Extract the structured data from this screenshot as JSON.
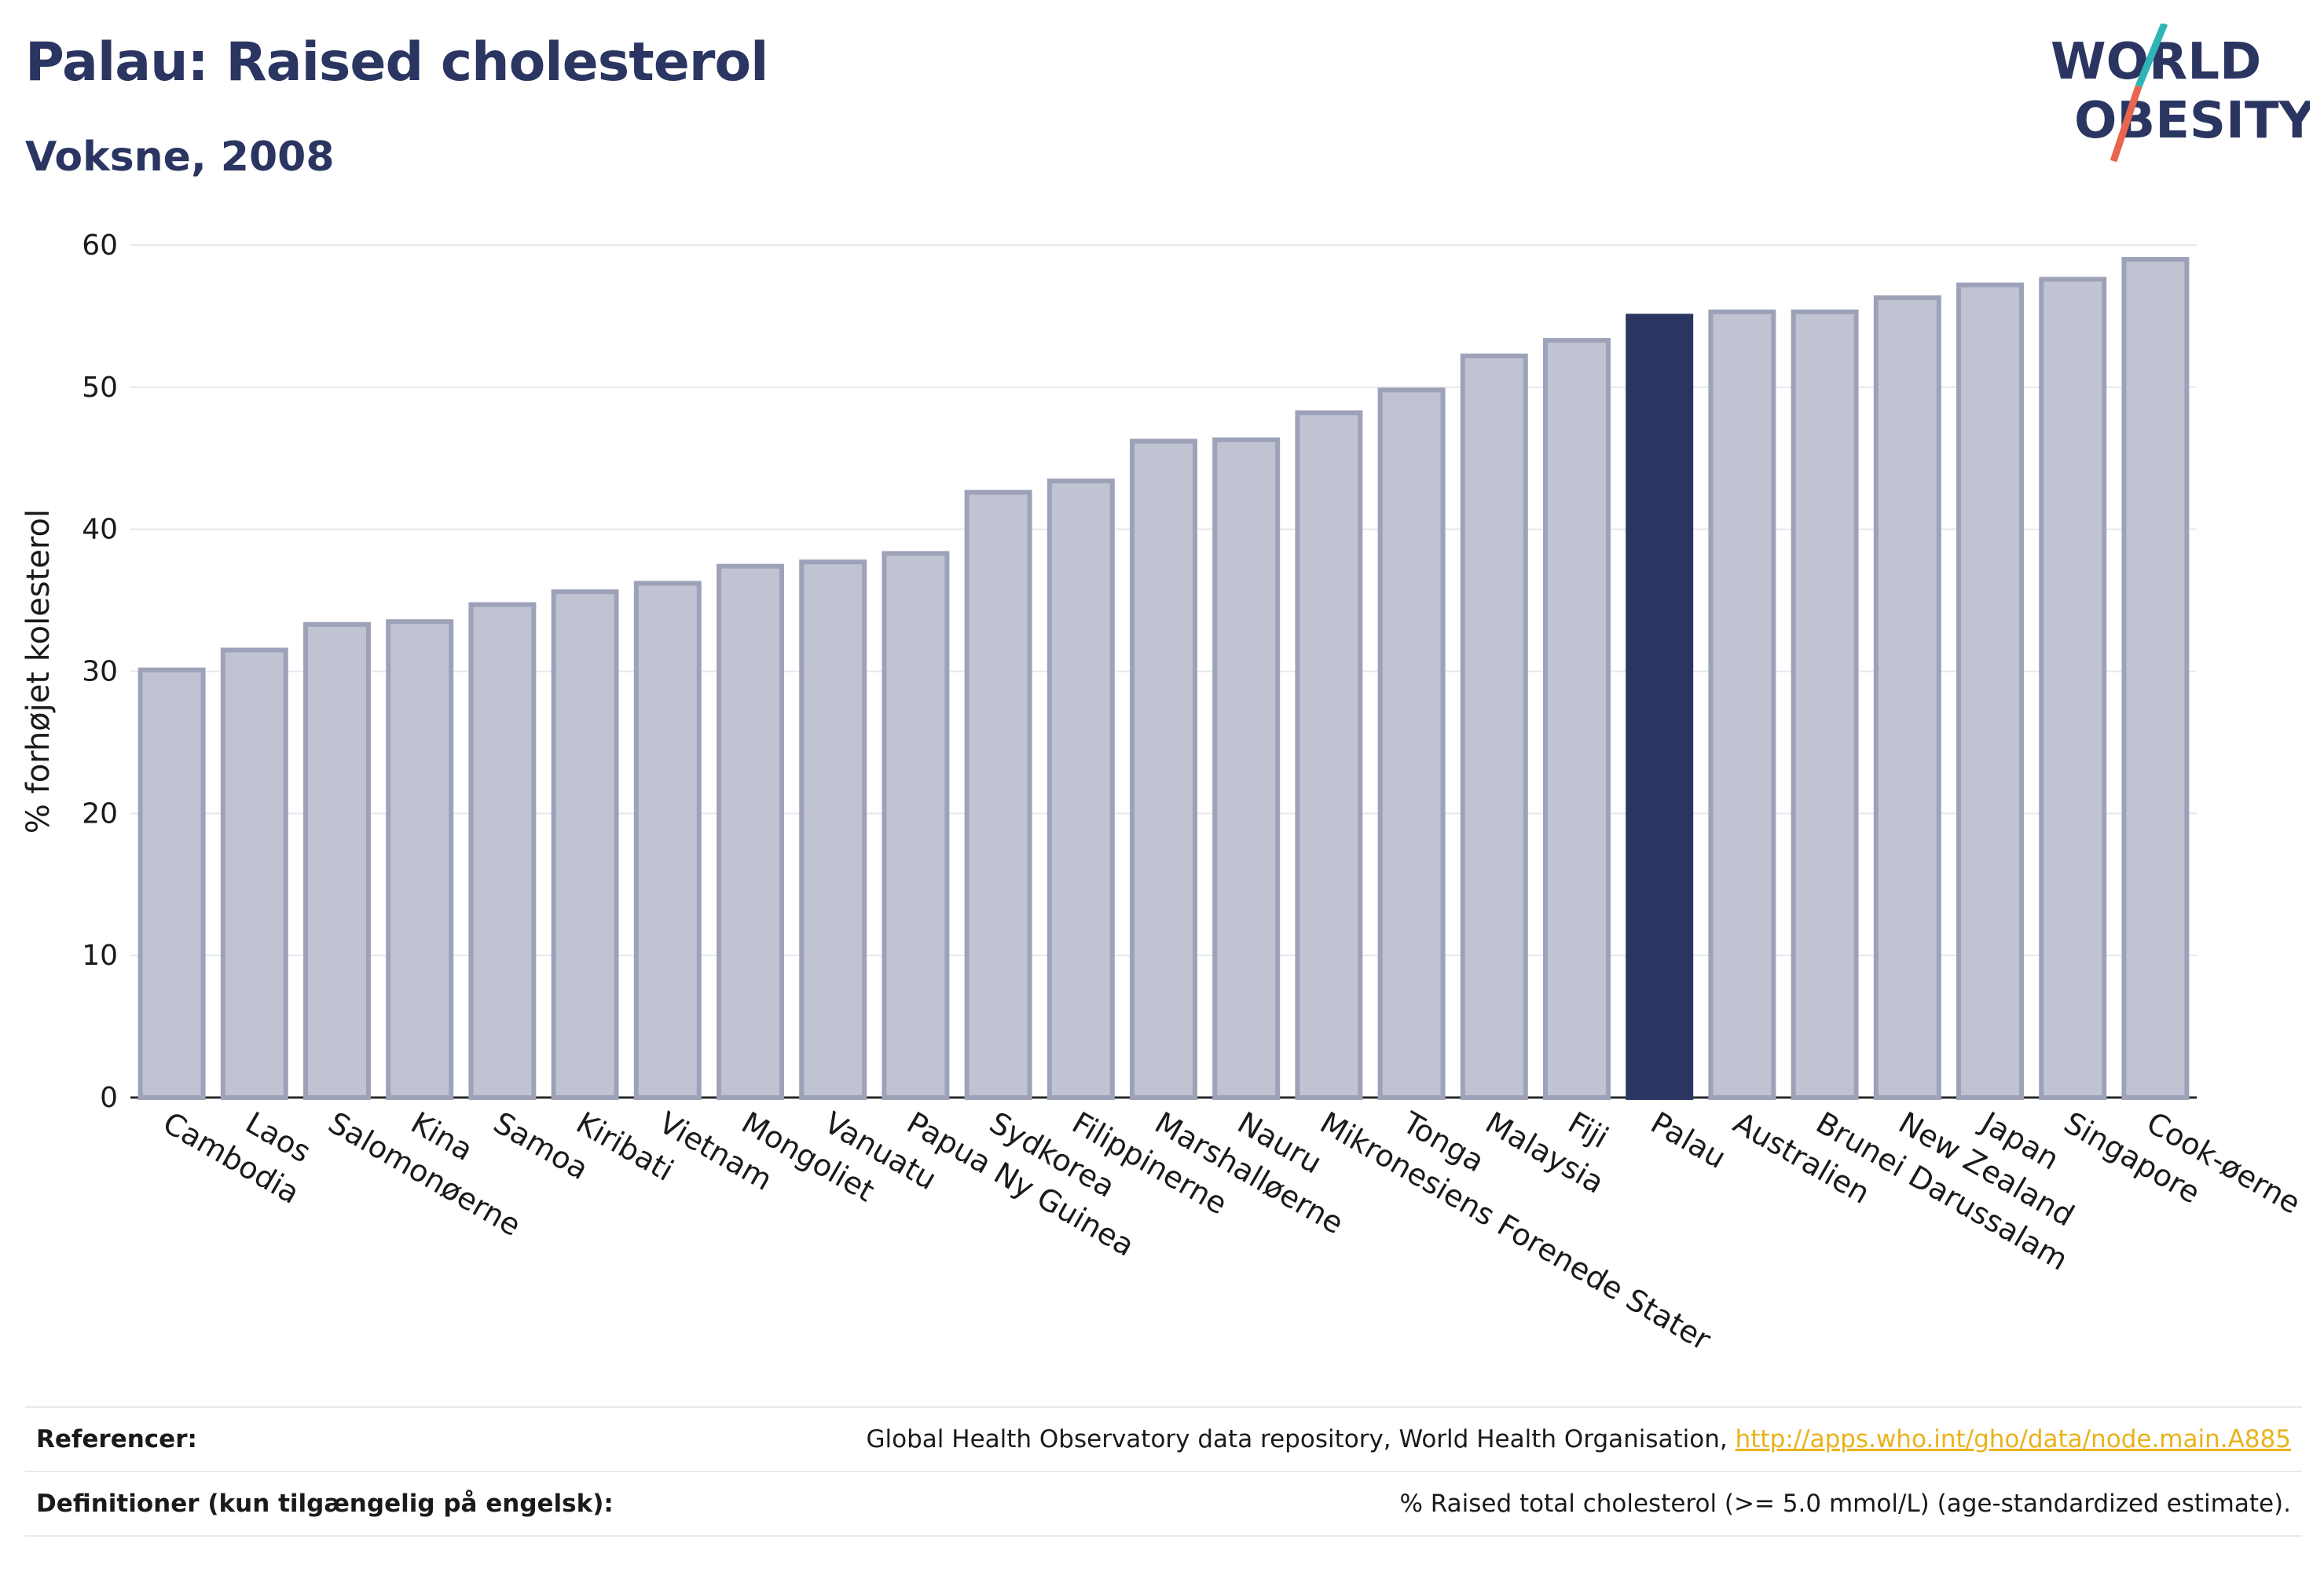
{
  "header": {
    "title": "Palau: Raised cholesterol",
    "subtitle": "Voksne, 2008"
  },
  "logo": {
    "line1": "WORLD",
    "line2": "OBESITY",
    "colors": {
      "text": "#2b3561",
      "slash_top": "#2fb5b5",
      "slash_bottom": "#e8664f"
    }
  },
  "chart_data": {
    "type": "bar",
    "title": "Palau: Raised cholesterol",
    "subtitle": "Voksne, 2008",
    "ylabel": "% forhøjet kolesterol",
    "xlabel": "",
    "ylim": [
      0,
      60
    ],
    "yticks": [
      0,
      10,
      20,
      30,
      40,
      50,
      60
    ],
    "grid": true,
    "highlight": "Palau",
    "colors": {
      "bar": "#c0c3d1",
      "bar_border": "#9da2b8",
      "highlight": "#2b3561",
      "grid": "#e6e8ee"
    },
    "categories": [
      "Cambodia",
      "Laos",
      "Salomonøerne",
      "Kina",
      "Samoa",
      "Kiribati",
      "Vietnam",
      "Mongoliet",
      "Vanuatu",
      "Papua Ny Guinea",
      "Sydkorea",
      "Filippinerne",
      "Marshalløerne",
      "Nauru",
      "Mikronesiens Forenede Stater",
      "Tonga",
      "Malaysia",
      "Fiji",
      "Palau",
      "Australien",
      "Brunei Darussalam",
      "New Zealand",
      "Japan",
      "Singapore",
      "Cook-øerne"
    ],
    "values": [
      30.1,
      31.5,
      33.3,
      33.5,
      34.7,
      35.6,
      36.2,
      37.4,
      37.7,
      38.3,
      42.6,
      43.4,
      46.2,
      46.3,
      48.2,
      49.8,
      52.2,
      53.3,
      55.0,
      55.3,
      55.3,
      56.3,
      57.2,
      57.6,
      59.0
    ]
  },
  "footer": {
    "references_label": "Referencer:",
    "references_text": "Global Health Observatory data repository, World Health Organisation, ",
    "references_link": "http://apps.who.int/gho/data/node.main.A885",
    "definitions_label": "Definitioner (kun tilgængelig på engelsk):",
    "definitions_text": "% Raised total cholesterol (>= 5.0 mmol/L) (age-standardized estimate)."
  }
}
